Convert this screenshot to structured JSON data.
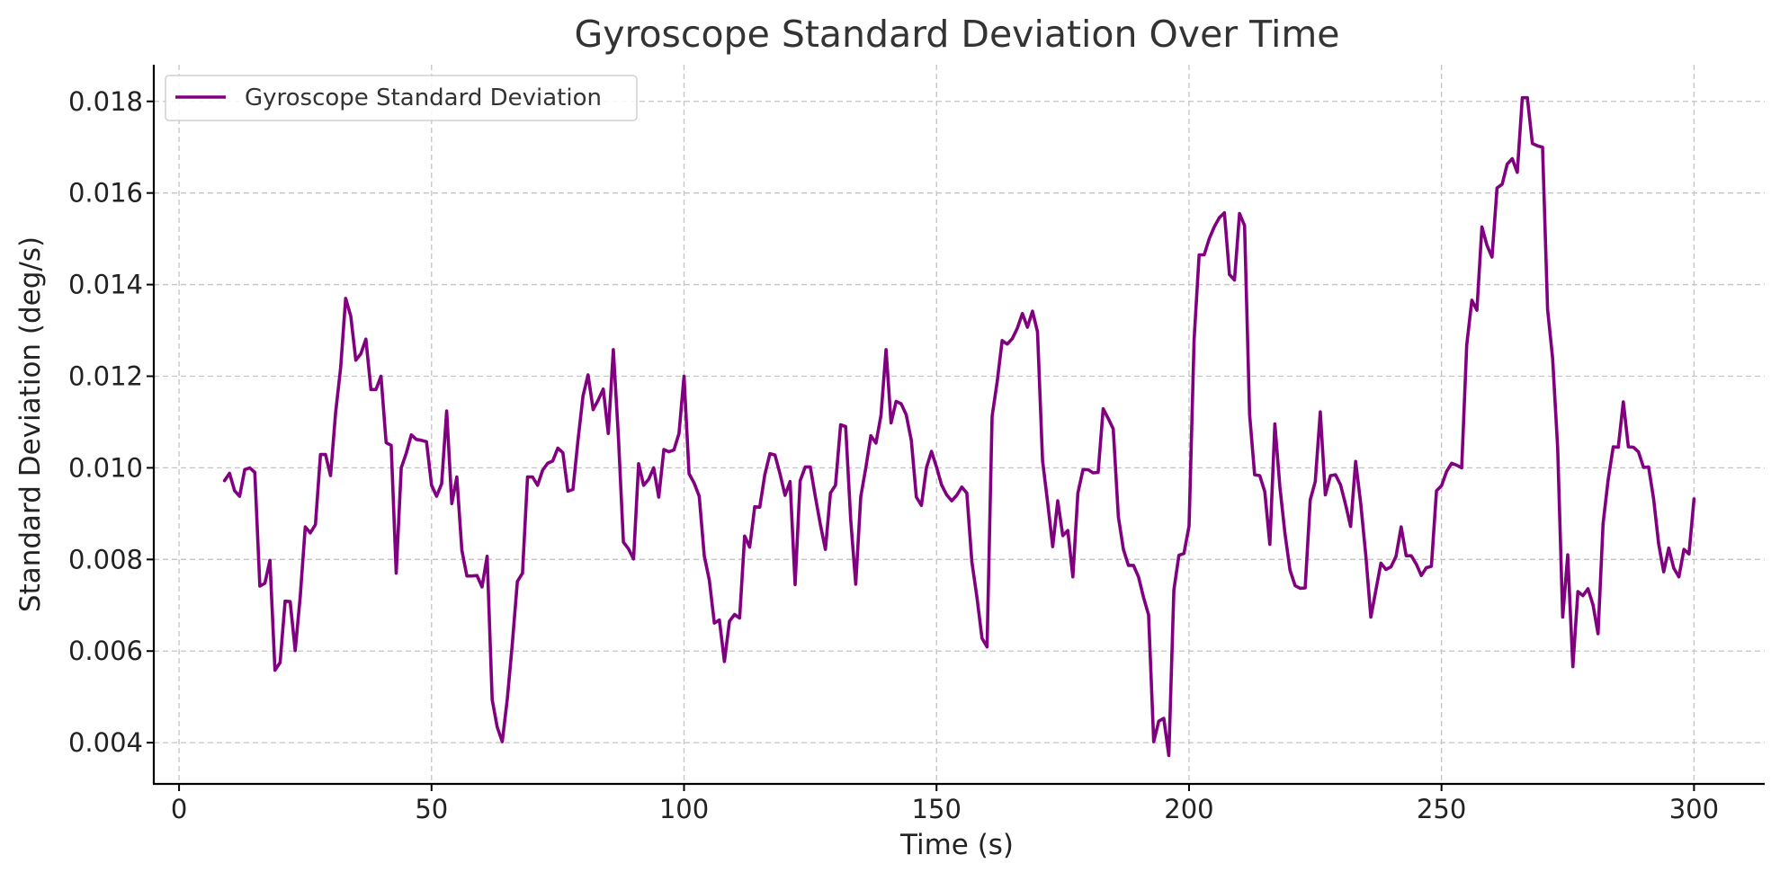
{
  "chart_data": {
    "type": "line",
    "title": "Gyroscope Standard Deviation Over Time",
    "xlabel": "Time (s)",
    "ylabel": "Standard Deviation (deg/s)",
    "xlim": [
      -5,
      314
    ],
    "ylim": [
      0.0031,
      0.0188
    ],
    "xticks": [
      0,
      50,
      100,
      150,
      200,
      250,
      300
    ],
    "yticks": [
      0.004,
      0.006,
      0.008,
      0.01,
      0.012,
      0.014,
      0.016,
      0.018
    ],
    "grid": true,
    "legend_position": "top-left",
    "series": [
      {
        "name": "Gyroscope Standard Deviation",
        "color": "#800080",
        "x_start": 9,
        "x_step": 1,
        "values": [
          0.00972,
          0.00988,
          0.0095,
          0.00938,
          0.00996,
          0.01,
          0.0099,
          0.00742,
          0.00748,
          0.00798,
          0.00558,
          0.00575,
          0.00709,
          0.00708,
          0.00601,
          0.00719,
          0.00871,
          0.00858,
          0.00876,
          0.01029,
          0.01029,
          0.00983,
          0.0112,
          0.01218,
          0.0137,
          0.01331,
          0.01235,
          0.01249,
          0.01281,
          0.01171,
          0.01171,
          0.012,
          0.01055,
          0.01049,
          0.0077,
          0.01,
          0.01032,
          0.01072,
          0.01062,
          0.0106,
          0.01057,
          0.00962,
          0.00938,
          0.00965,
          0.01124,
          0.00922,
          0.0098,
          0.0082,
          0.00764,
          0.00764,
          0.00765,
          0.0074,
          0.00807,
          0.00494,
          0.00434,
          0.00402,
          0.00495,
          0.00616,
          0.00752,
          0.0077,
          0.0098,
          0.0098,
          0.00962,
          0.00995,
          0.0101,
          0.01015,
          0.01043,
          0.01033,
          0.00949,
          0.00953,
          0.0106,
          0.01157,
          0.01203,
          0.01127,
          0.01148,
          0.01172,
          0.01075,
          0.01258,
          0.01069,
          0.00838,
          0.00823,
          0.00801,
          0.01009,
          0.00962,
          0.00975,
          0.01,
          0.00936,
          0.0104,
          0.01035,
          0.01039,
          0.01075,
          0.012,
          0.00987,
          0.00967,
          0.00938,
          0.00808,
          0.00755,
          0.00661,
          0.00668,
          0.00577,
          0.00665,
          0.0068,
          0.00672,
          0.00851,
          0.00827,
          0.00915,
          0.00914,
          0.00985,
          0.01031,
          0.01028,
          0.00987,
          0.0094,
          0.0097,
          0.00745,
          0.00972,
          0.01002,
          0.01002,
          0.00937,
          0.00876,
          0.00822,
          0.00945,
          0.00962,
          0.01094,
          0.0109,
          0.00887,
          0.00746,
          0.00937,
          0.01,
          0.0107,
          0.01054,
          0.01115,
          0.01258,
          0.01098,
          0.01145,
          0.0114,
          0.01116,
          0.0106,
          0.00936,
          0.00918,
          0.01,
          0.01036,
          0.01002,
          0.00963,
          0.00941,
          0.00928,
          0.0094,
          0.00958,
          0.00945,
          0.00795,
          0.00717,
          0.00628,
          0.00609,
          0.01112,
          0.01187,
          0.01278,
          0.0127,
          0.01282,
          0.01305,
          0.01337,
          0.01307,
          0.01342,
          0.01297,
          0.01016,
          0.00924,
          0.00828,
          0.00928,
          0.00852,
          0.00863,
          0.00762,
          0.00945,
          0.00996,
          0.00996,
          0.00989,
          0.0099,
          0.01129,
          0.01108,
          0.01085,
          0.00893,
          0.00822,
          0.00787,
          0.00787,
          0.00762,
          0.00717,
          0.00679,
          0.00402,
          0.00447,
          0.00453,
          0.00372,
          0.00733,
          0.00809,
          0.00813,
          0.00873,
          0.0128,
          0.01465,
          0.01465,
          0.015,
          0.01526,
          0.01546,
          0.01557,
          0.01422,
          0.0141,
          0.01555,
          0.01529,
          0.01117,
          0.00985,
          0.00983,
          0.00948,
          0.00833,
          0.01096,
          0.00958,
          0.00857,
          0.00777,
          0.00743,
          0.00737,
          0.00738,
          0.0093,
          0.0097,
          0.01122,
          0.00941,
          0.00983,
          0.00985,
          0.00963,
          0.0092,
          0.00872,
          0.01014,
          0.00923,
          0.00809,
          0.00674,
          0.00733,
          0.00792,
          0.00778,
          0.00784,
          0.00807,
          0.00871,
          0.00808,
          0.00808,
          0.0079,
          0.00765,
          0.00782,
          0.00785,
          0.0095,
          0.00961,
          0.00992,
          0.0101,
          0.01006,
          0.01,
          0.01268,
          0.01366,
          0.01344,
          0.01526,
          0.01486,
          0.0146,
          0.01611,
          0.01619,
          0.01663,
          0.01675,
          0.01645,
          0.01808,
          0.01808,
          0.01708,
          0.01703,
          0.017,
          0.01346,
          0.01239,
          0.01044,
          0.00674,
          0.0081,
          0.00566,
          0.0073,
          0.00721,
          0.00736,
          0.00701,
          0.00638,
          0.00878,
          0.00975,
          0.01046,
          0.01045,
          0.01144,
          0.01046,
          0.01045,
          0.01035,
          0.01001,
          0.01002,
          0.00932,
          0.00834,
          0.00773,
          0.00825,
          0.00781,
          0.00762,
          0.00822,
          0.00812,
          0.00932
        ]
      }
    ]
  }
}
